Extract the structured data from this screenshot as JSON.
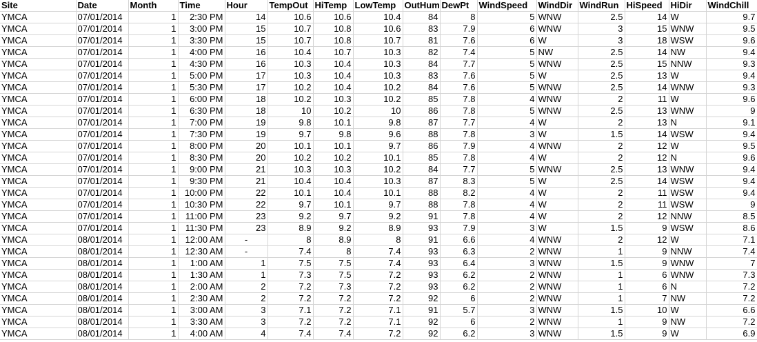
{
  "sheet": {
    "headers": [
      "Site",
      "Date",
      "Month",
      "Time",
      "Hour",
      "TempOut",
      "HiTemp",
      "LowTemp",
      "OutHum",
      "DewPt",
      "WindSpeed",
      "WindDir",
      "WindRun",
      "HiSpeed",
      "HiDir",
      "WindChill"
    ],
    "rows": [
      [
        "YMCA",
        "07/01/2014",
        "1",
        "2:30 PM",
        "14",
        "10.6",
        "10.6",
        "10.4",
        "84",
        "8",
        "5",
        "WNW",
        "2.5",
        "14",
        "W",
        "9.7"
      ],
      [
        "YMCA",
        "07/01/2014",
        "1",
        "3:00 PM",
        "15",
        "10.7",
        "10.8",
        "10.6",
        "83",
        "7.9",
        "6",
        "WNW",
        "3",
        "15",
        "WNW",
        "9.5"
      ],
      [
        "YMCA",
        "07/01/2014",
        "1",
        "3:30 PM",
        "15",
        "10.7",
        "10.8",
        "10.7",
        "81",
        "7.6",
        "6",
        "W",
        "3",
        "18",
        "WSW",
        "9.6"
      ],
      [
        "YMCA",
        "07/01/2014",
        "1",
        "4:00 PM",
        "16",
        "10.4",
        "10.7",
        "10.3",
        "82",
        "7.4",
        "5",
        "NW",
        "2.5",
        "14",
        "NW",
        "9.4"
      ],
      [
        "YMCA",
        "07/01/2014",
        "1",
        "4:30 PM",
        "16",
        "10.3",
        "10.4",
        "10.3",
        "84",
        "7.7",
        "5",
        "WNW",
        "2.5",
        "15",
        "NNW",
        "9.3"
      ],
      [
        "YMCA",
        "07/01/2014",
        "1",
        "5:00 PM",
        "17",
        "10.3",
        "10.4",
        "10.3",
        "83",
        "7.6",
        "5",
        "W",
        "2.5",
        "13",
        "W",
        "9.4"
      ],
      [
        "YMCA",
        "07/01/2014",
        "1",
        "5:30 PM",
        "17",
        "10.2",
        "10.4",
        "10.2",
        "84",
        "7.6",
        "5",
        "WNW",
        "2.5",
        "14",
        "WNW",
        "9.3"
      ],
      [
        "YMCA",
        "07/01/2014",
        "1",
        "6:00 PM",
        "18",
        "10.2",
        "10.3",
        "10.2",
        "85",
        "7.8",
        "4",
        "WNW",
        "2",
        "11",
        "W",
        "9.6"
      ],
      [
        "YMCA",
        "07/01/2014",
        "1",
        "6:30 PM",
        "18",
        "10",
        "10.2",
        "10",
        "86",
        "7.8",
        "5",
        "WNW",
        "2.5",
        "13",
        "WNW",
        "9"
      ],
      [
        "YMCA",
        "07/01/2014",
        "1",
        "7:00 PM",
        "19",
        "9.8",
        "10.1",
        "9.8",
        "87",
        "7.7",
        "4",
        "W",
        "2",
        "13",
        "N",
        "9.1"
      ],
      [
        "YMCA",
        "07/01/2014",
        "1",
        "7:30 PM",
        "19",
        "9.7",
        "9.8",
        "9.6",
        "88",
        "7.8",
        "3",
        "W",
        "1.5",
        "14",
        "WSW",
        "9.4"
      ],
      [
        "YMCA",
        "07/01/2014",
        "1",
        "8:00 PM",
        "20",
        "10.1",
        "10.1",
        "9.7",
        "86",
        "7.9",
        "4",
        "WNW",
        "2",
        "12",
        "W",
        "9.5"
      ],
      [
        "YMCA",
        "07/01/2014",
        "1",
        "8:30 PM",
        "20",
        "10.2",
        "10.2",
        "10.1",
        "85",
        "7.8",
        "4",
        "W",
        "2",
        "12",
        "N",
        "9.6"
      ],
      [
        "YMCA",
        "07/01/2014",
        "1",
        "9:00 PM",
        "21",
        "10.3",
        "10.3",
        "10.2",
        "84",
        "7.7",
        "5",
        "WNW",
        "2.5",
        "13",
        "WNW",
        "9.4"
      ],
      [
        "YMCA",
        "07/01/2014",
        "1",
        "9:30 PM",
        "21",
        "10.4",
        "10.4",
        "10.3",
        "87",
        "8.3",
        "5",
        "W",
        "2.5",
        "14",
        "WSW",
        "9.4"
      ],
      [
        "YMCA",
        "07/01/2014",
        "1",
        "10:00 PM",
        "22",
        "10.1",
        "10.4",
        "10.1",
        "88",
        "8.2",
        "4",
        "W",
        "2",
        "11",
        "WSW",
        "9.4"
      ],
      [
        "YMCA",
        "07/01/2014",
        "1",
        "10:30 PM",
        "22",
        "9.7",
        "10.1",
        "9.7",
        "88",
        "7.8",
        "4",
        "W",
        "2",
        "11",
        "WSW",
        "9"
      ],
      [
        "YMCA",
        "07/01/2014",
        "1",
        "11:00 PM",
        "23",
        "9.2",
        "9.7",
        "9.2",
        "91",
        "7.8",
        "4",
        "W",
        "2",
        "12",
        "NNW",
        "8.5"
      ],
      [
        "YMCA",
        "07/01/2014",
        "1",
        "11:30 PM",
        "23",
        "8.9",
        "9.2",
        "8.9",
        "93",
        "7.9",
        "3",
        "W",
        "1.5",
        "9",
        "WSW",
        "8.6"
      ],
      [
        "YMCA",
        "08/01/2014",
        "1",
        "12:00 AM",
        "-",
        "8",
        "8.9",
        "8",
        "91",
        "6.6",
        "4",
        "WNW",
        "2",
        "12",
        "W",
        "7.1"
      ],
      [
        "YMCA",
        "08/01/2014",
        "1",
        "12:30 AM",
        "-",
        "7.4",
        "8",
        "7.4",
        "93",
        "6.3",
        "2",
        "WNW",
        "1",
        "9",
        "NNW",
        "7.4"
      ],
      [
        "YMCA",
        "08/01/2014",
        "1",
        "1:00 AM",
        "1",
        "7.5",
        "7.5",
        "7.4",
        "93",
        "6.4",
        "3",
        "WNW",
        "1.5",
        "9",
        "WNW",
        "7"
      ],
      [
        "YMCA",
        "08/01/2014",
        "1",
        "1:30 AM",
        "1",
        "7.3",
        "7.5",
        "7.2",
        "93",
        "6.2",
        "2",
        "WNW",
        "1",
        "6",
        "WNW",
        "7.3"
      ],
      [
        "YMCA",
        "08/01/2014",
        "1",
        "2:00 AM",
        "2",
        "7.2",
        "7.3",
        "7.2",
        "93",
        "6.2",
        "2",
        "WNW",
        "1",
        "6",
        "N",
        "7.2"
      ],
      [
        "YMCA",
        "08/01/2014",
        "1",
        "2:30 AM",
        "2",
        "7.2",
        "7.2",
        "7.2",
        "92",
        "6",
        "2",
        "WNW",
        "1",
        "7",
        "NW",
        "7.2"
      ],
      [
        "YMCA",
        "08/01/2014",
        "1",
        "3:00 AM",
        "3",
        "7.1",
        "7.2",
        "7.1",
        "91",
        "5.7",
        "3",
        "WNW",
        "1.5",
        "10",
        "W",
        "6.6"
      ],
      [
        "YMCA",
        "08/01/2014",
        "1",
        "3:30 AM",
        "3",
        "7.2",
        "7.2",
        "7.1",
        "92",
        "6",
        "2",
        "WNW",
        "1",
        "9",
        "NW",
        "7.2"
      ],
      [
        "YMCA",
        "08/01/2014",
        "1",
        "4:00 AM",
        "4",
        "7.4",
        "7.4",
        "7.2",
        "92",
        "6.2",
        "3",
        "WNW",
        "1.5",
        "9",
        "W",
        "6.9"
      ]
    ]
  }
}
